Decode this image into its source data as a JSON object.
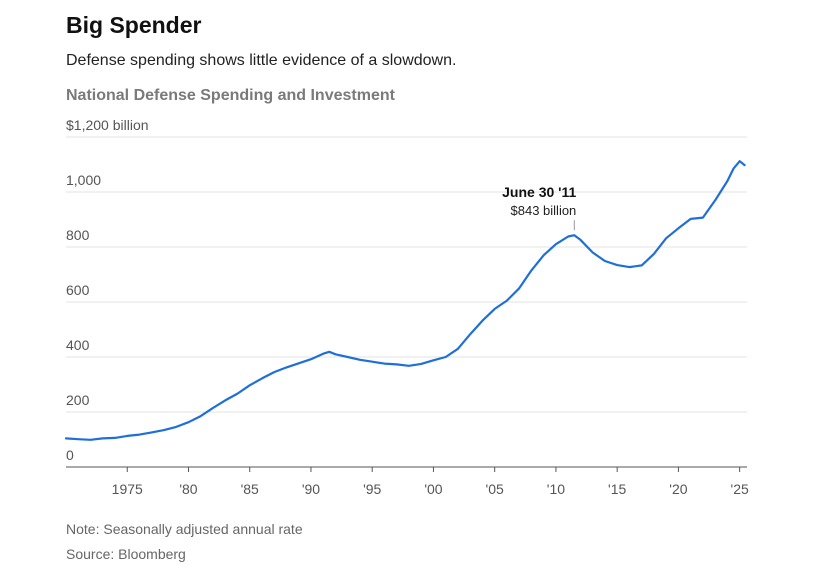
{
  "header": {
    "title": "Big Spender",
    "subtitle": "Defense spending shows little evidence of a slowdown.",
    "chart_title": "National Defense Spending and Investment"
  },
  "footer": {
    "note": "Note: Seasonally adjusted annual rate",
    "source": "Source: Bloomberg"
  },
  "chart_data": {
    "type": "line",
    "title": "National Defense Spending and Investment",
    "ylabel": "$1,200 billion",
    "ylim": [
      0,
      1200
    ],
    "xlim": [
      1970,
      2025.6
    ],
    "grid": true,
    "y_ticks": [
      {
        "value": 0,
        "label": "0"
      },
      {
        "value": 200,
        "label": "200"
      },
      {
        "value": 400,
        "label": "400"
      },
      {
        "value": 600,
        "label": "600"
      },
      {
        "value": 800,
        "label": "800"
      },
      {
        "value": 1000,
        "label": "1,000"
      },
      {
        "value": 1200,
        "label": "$1,200 billion"
      }
    ],
    "x_ticks": [
      {
        "value": 1975,
        "label": "1975"
      },
      {
        "value": 1980,
        "label": "'80"
      },
      {
        "value": 1985,
        "label": "'85"
      },
      {
        "value": 1990,
        "label": "'90"
      },
      {
        "value": 1995,
        "label": "'95"
      },
      {
        "value": 2000,
        "label": "'00"
      },
      {
        "value": 2005,
        "label": "'05"
      },
      {
        "value": 2010,
        "label": "'10"
      },
      {
        "value": 2015,
        "label": "'15"
      },
      {
        "value": 2020,
        "label": "'20"
      },
      {
        "value": 2025,
        "label": "'25"
      }
    ],
    "series": [
      {
        "color": "#1f6fd8",
        "points": [
          [
            1970.0,
            104
          ],
          [
            1971.0,
            101
          ],
          [
            1972.0,
            99
          ],
          [
            1973.0,
            104
          ],
          [
            1974.0,
            106
          ],
          [
            1975.0,
            113
          ],
          [
            1976.0,
            118
          ],
          [
            1977.0,
            126
          ],
          [
            1978.0,
            134
          ],
          [
            1979.0,
            146
          ],
          [
            1980.0,
            163
          ],
          [
            1981.0,
            185
          ],
          [
            1982.0,
            215
          ],
          [
            1983.0,
            242
          ],
          [
            1984.0,
            267
          ],
          [
            1985.0,
            297
          ],
          [
            1986.0,
            322
          ],
          [
            1987.0,
            345
          ],
          [
            1988.0,
            362
          ],
          [
            1989.0,
            377
          ],
          [
            1990.0,
            392
          ],
          [
            1991.0,
            412
          ],
          [
            1991.5,
            419
          ],
          [
            1992.0,
            410
          ],
          [
            1993.0,
            400
          ],
          [
            1994.0,
            390
          ],
          [
            1995.0,
            383
          ],
          [
            1996.0,
            376
          ],
          [
            1997.0,
            373
          ],
          [
            1998.0,
            368
          ],
          [
            1999.0,
            375
          ],
          [
            2000.0,
            388
          ],
          [
            2001.0,
            400
          ],
          [
            2002.0,
            430
          ],
          [
            2003.0,
            483
          ],
          [
            2004.0,
            532
          ],
          [
            2005.0,
            575
          ],
          [
            2006.0,
            605
          ],
          [
            2007.0,
            650
          ],
          [
            2008.0,
            715
          ],
          [
            2009.0,
            770
          ],
          [
            2010.0,
            810
          ],
          [
            2011.0,
            838
          ],
          [
            2011.5,
            843
          ],
          [
            2012.0,
            826
          ],
          [
            2013.0,
            780
          ],
          [
            2014.0,
            749
          ],
          [
            2015.0,
            734
          ],
          [
            2016.0,
            727
          ],
          [
            2017.0,
            733
          ],
          [
            2018.0,
            775
          ],
          [
            2019.0,
            832
          ],
          [
            2020.0,
            868
          ],
          [
            2021.0,
            902
          ],
          [
            2022.0,
            907
          ],
          [
            2023.0,
            970
          ],
          [
            2024.0,
            1040
          ],
          [
            2024.5,
            1085
          ],
          [
            2025.0,
            1112
          ],
          [
            2025.4,
            1098
          ]
        ]
      }
    ],
    "annotation": {
      "x": 2011.5,
      "y": 843,
      "title": "June 30 '11",
      "value": "$843 billion"
    }
  }
}
